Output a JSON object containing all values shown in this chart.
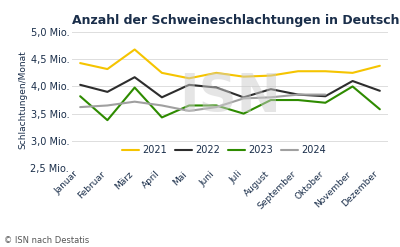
{
  "title": "Anzahl der Schweineschlachtungen in Deutschland",
  "ylabel": "Schlachtungen/Monat",
  "caption": "© ISN nach Destatis",
  "months": [
    "Januar",
    "Februar",
    "März",
    "April",
    "Mai",
    "Juni",
    "Juli",
    "August",
    "September",
    "Oktober",
    "November",
    "Dezember"
  ],
  "series": {
    "2021": [
      4.43,
      4.32,
      4.68,
      4.25,
      4.15,
      4.25,
      4.18,
      4.2,
      4.28,
      4.28,
      4.25,
      4.38
    ],
    "2022": [
      4.03,
      3.9,
      4.17,
      3.8,
      4.03,
      3.98,
      3.8,
      3.95,
      3.85,
      3.82,
      4.1,
      3.92
    ],
    "2023": [
      3.82,
      3.38,
      3.98,
      3.43,
      3.65,
      3.65,
      3.5,
      3.75,
      3.75,
      3.7,
      4.0,
      3.58
    ],
    "2024": [
      3.62,
      3.65,
      3.72,
      3.65,
      3.55,
      3.62,
      3.78,
      3.8,
      3.85,
      3.85,
      null,
      null
    ]
  },
  "colors": {
    "2021": "#f5c400",
    "2022": "#2d2d2d",
    "2023": "#2e8b00",
    "2024": "#a0a0a0"
  },
  "ylim": [
    2.5,
    5.0
  ],
  "yticks": [
    2.5,
    3.0,
    3.5,
    4.0,
    4.5,
    5.0
  ],
  "background_color": "#ffffff",
  "watermark": "ISN",
  "title_color": "#1a2e4a",
  "axis_label_color": "#1a2e4a",
  "tick_label_color": "#1a2e4a",
  "caption_color": "#555555"
}
